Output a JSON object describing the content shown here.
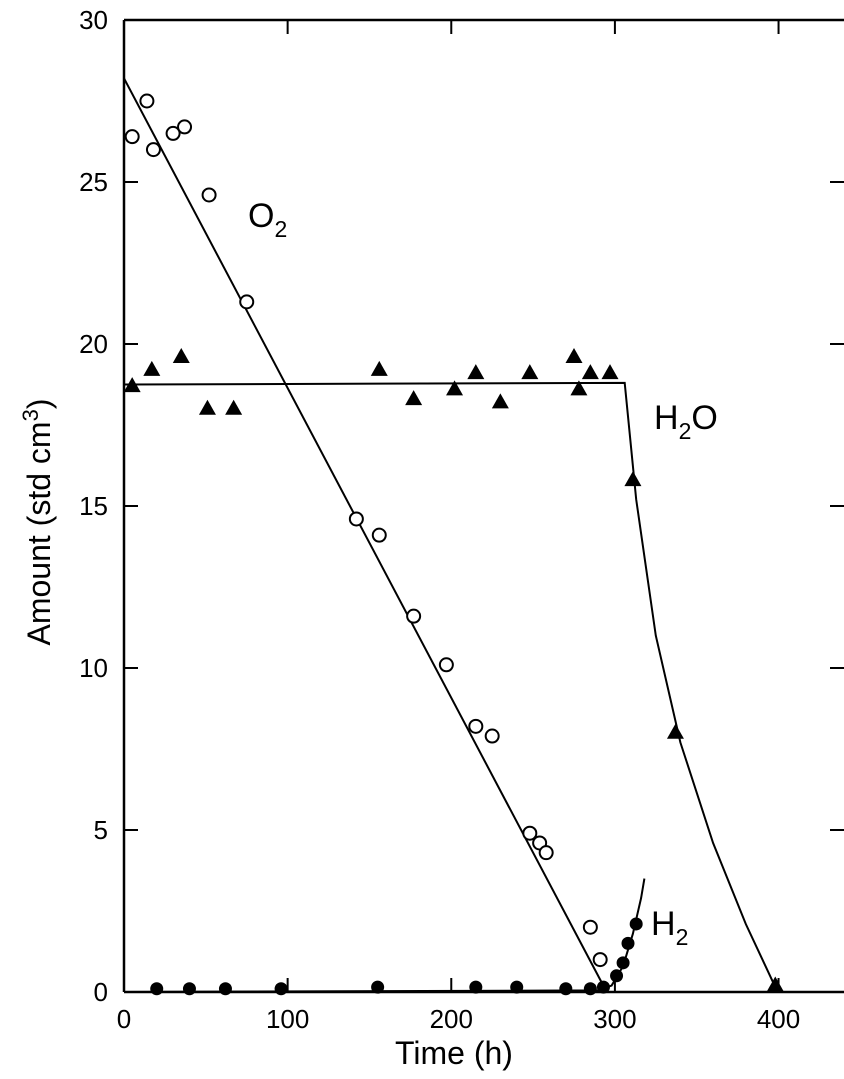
{
  "chart_data": {
    "type": "scatter",
    "xlabel": "Time (h)",
    "ylabel": "Amount (std cm",
    "ylabel_sup": "3",
    "ylabel_close": ")",
    "xlim": [
      0,
      440
    ],
    "ylim": [
      0,
      30
    ],
    "x_ticks": [
      0,
      100,
      200,
      300,
      400
    ],
    "y_ticks": [
      0,
      5,
      10,
      15,
      20,
      25,
      30
    ],
    "grid": false,
    "series": [
      {
        "name": "O",
        "subscript": "2",
        "marker": "open-circle",
        "color": "#000000",
        "points": [
          [
            5,
            26.4
          ],
          [
            14,
            27.5
          ],
          [
            18,
            26
          ],
          [
            30,
            26.5
          ],
          [
            37,
            26.7
          ],
          [
            52,
            24.6
          ],
          [
            75,
            21.3
          ],
          [
            142,
            14.6
          ],
          [
            156,
            14.1
          ],
          [
            177,
            11.6
          ],
          [
            197,
            10.1
          ],
          [
            215,
            8.2
          ],
          [
            225,
            7.9
          ],
          [
            248,
            4.9
          ],
          [
            254,
            4.6
          ],
          [
            258,
            4.3
          ],
          [
            285,
            2.0
          ],
          [
            291,
            1.0
          ]
        ],
        "fit": [
          [
            0,
            28.2
          ],
          [
            295,
            0
          ]
        ]
      },
      {
        "name": "H",
        "subscript": "2",
        "suffix": "O",
        "marker": "filled-triangle",
        "color": "#000000",
        "points": [
          [
            5,
            18.7
          ],
          [
            17,
            19.2
          ],
          [
            35,
            19.6
          ],
          [
            51,
            18.0
          ],
          [
            67,
            18.0
          ],
          [
            156,
            19.2
          ],
          [
            177,
            18.3
          ],
          [
            202,
            18.6
          ],
          [
            215,
            19.1
          ],
          [
            230,
            18.2
          ],
          [
            248,
            19.1
          ],
          [
            275,
            19.6
          ],
          [
            278,
            18.6
          ],
          [
            285,
            19.1
          ],
          [
            297,
            19.1
          ],
          [
            311,
            15.8
          ],
          [
            337,
            8.0
          ],
          [
            398,
            0.2
          ]
        ],
        "fit": [
          [
            0,
            18.75
          ],
          [
            306,
            18.8
          ],
          [
            313,
            15.2
          ],
          [
            325,
            11.0
          ],
          [
            340,
            7.7
          ],
          [
            360,
            4.6
          ],
          [
            380,
            2.1
          ],
          [
            398,
            0.15
          ]
        ]
      },
      {
        "name": "H",
        "subscript": "2",
        "marker": "filled-circle",
        "color": "#000000",
        "points": [
          [
            20,
            0.1
          ],
          [
            40,
            0.1
          ],
          [
            62,
            0.1
          ],
          [
            96,
            0.1
          ],
          [
            155,
            0.15
          ],
          [
            215,
            0.15
          ],
          [
            240,
            0.15
          ],
          [
            270,
            0.1
          ],
          [
            285,
            0.1
          ],
          [
            293,
            0.15
          ],
          [
            301,
            0.5
          ],
          [
            305,
            0.9
          ],
          [
            308,
            1.5
          ],
          [
            313,
            2.1
          ]
        ],
        "fit": [
          [
            0,
            0.0
          ],
          [
            290,
            0.05
          ],
          [
            298,
            0.2
          ],
          [
            305,
            0.8
          ],
          [
            311,
            1.8
          ],
          [
            316,
            2.9
          ],
          [
            318,
            3.5
          ]
        ]
      }
    ]
  }
}
